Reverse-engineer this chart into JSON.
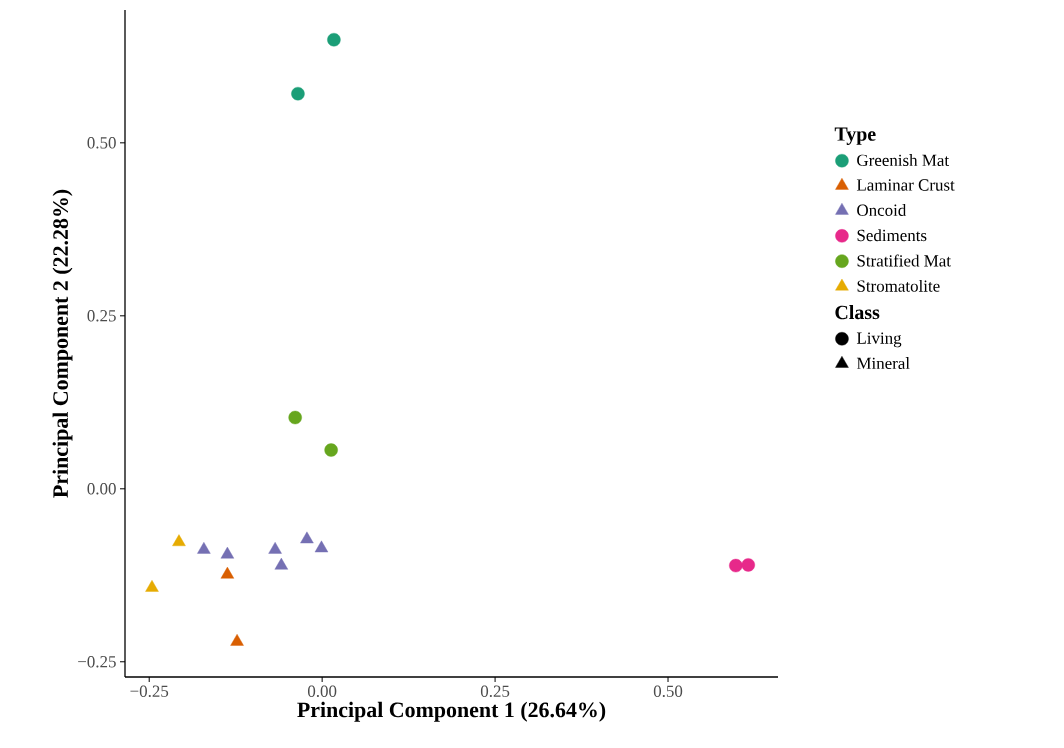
{
  "chart_data": {
    "type": "scatter",
    "xlabel": "Principal Component 1 (26.64%)",
    "ylabel": "Principal Component 2 (22.28%)",
    "legend_title": "Type",
    "annotations": [
      "Class"
    ],
    "xlim": [
      -0.285,
      0.659
    ],
    "ylim": [
      -0.272,
      0.692
    ],
    "xticks": [
      {
        "value": -0.25,
        "label": "−0.25"
      },
      {
        "value": 0,
        "label": "0.00"
      },
      {
        "value": 0.25,
        "label": "0.25"
      },
      {
        "value": 0.5,
        "label": "0.50"
      }
    ],
    "yticks": [
      {
        "value": -0.25,
        "label": "−0.25"
      },
      {
        "value": 0,
        "label": "0.00"
      },
      {
        "value": 0.25,
        "label": "0.25"
      },
      {
        "value": 0.5,
        "label": "0.50"
      }
    ],
    "grid": false,
    "legend": "right",
    "series": [
      {
        "name": "Greenish Mat",
        "color": "#1b9e77",
        "marker": "circle",
        "x": [
          0.017,
          -0.035
        ],
        "values": [
          0.649,
          0.571
        ]
      },
      {
        "name": "Laminar Crust",
        "color": "#d95f02",
        "marker": "triangle",
        "x": [
          -0.137,
          -0.123
        ],
        "values": [
          -0.124,
          -0.221
        ]
      },
      {
        "name": "Oncoid",
        "color": "#7570b3",
        "marker": "triangle",
        "x": [
          -0.171,
          -0.137,
          -0.068,
          -0.059,
          -0.022,
          -0.001
        ],
        "values": [
          -0.088,
          -0.095,
          -0.088,
          -0.111,
          -0.073,
          -0.086
        ]
      },
      {
        "name": "Sediments",
        "color": "#e7298a",
        "marker": "circle",
        "x": [
          0.598,
          0.616
        ],
        "values": [
          -0.111,
          -0.11
        ]
      },
      {
        "name": "Stratified Mat",
        "color": "#66a61e",
        "marker": "circle",
        "x": [
          -0.039,
          0.013
        ],
        "values": [
          0.103,
          0.056
        ]
      },
      {
        "name": "Stromatolite",
        "color": "#e6ab02",
        "marker": "triangle",
        "x": [
          -0.207,
          -0.246
        ],
        "values": [
          -0.077,
          -0.143
        ]
      },
      {
        "name": "Living",
        "color": "#000000",
        "marker": "circle"
      },
      {
        "name": "Mineral",
        "color": "#000000",
        "marker": "triangle"
      }
    ]
  }
}
